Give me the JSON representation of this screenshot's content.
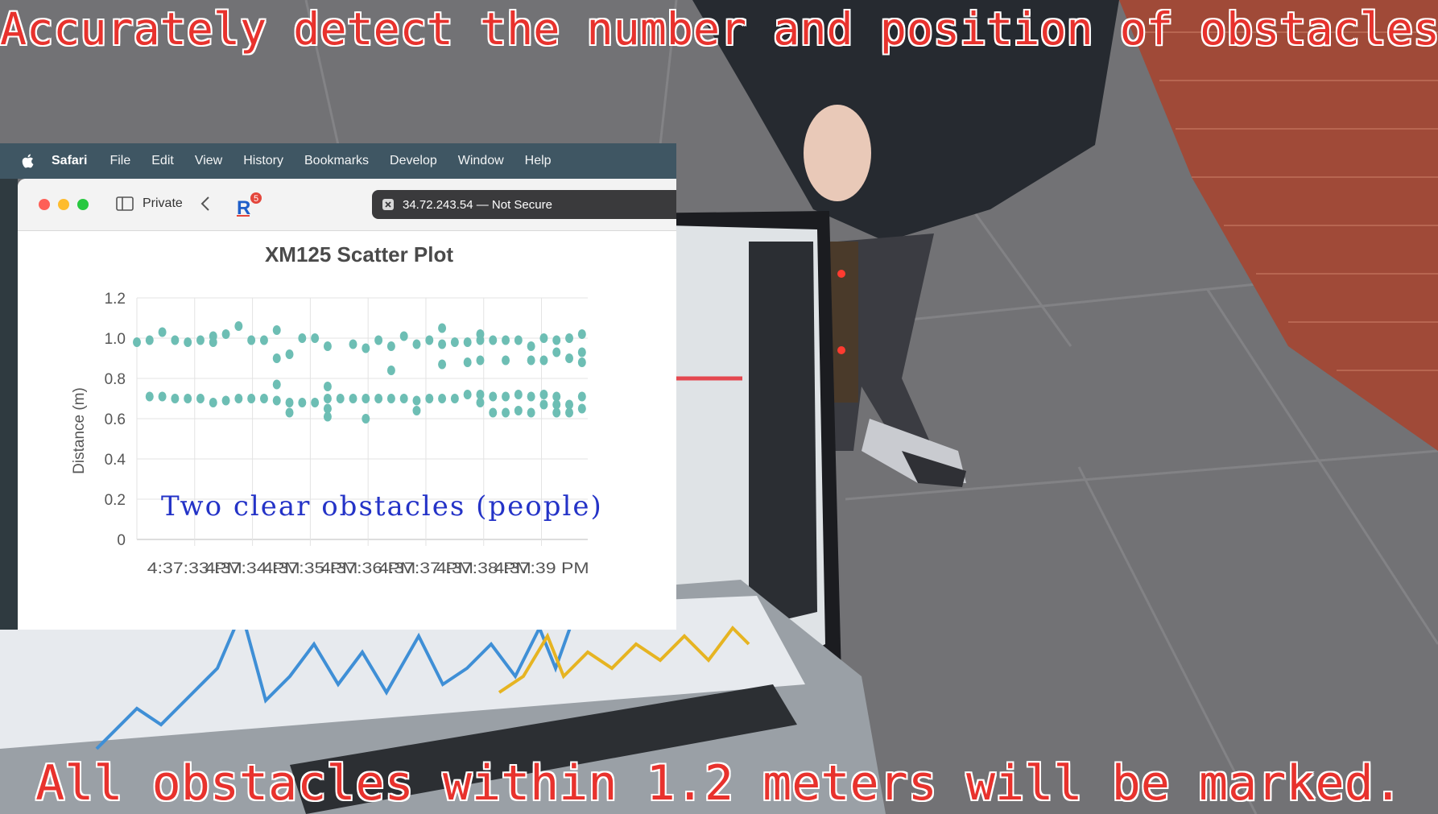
{
  "captions": {
    "top": "Accurately detect the number and position of obstacles.",
    "bottom": "All obstacles within 1.2 meters will be marked."
  },
  "menubar": {
    "app_name": "Safari",
    "items": [
      "File",
      "Edit",
      "View",
      "History",
      "Bookmarks",
      "Develop",
      "Window",
      "Help"
    ]
  },
  "browser": {
    "private_label": "Private",
    "extension_badge": "5",
    "url_text": "34.72.243.54 — Not Secure"
  },
  "colors": {
    "point": "#6dbeb4",
    "caption": "#e8322d",
    "annotation": "#2433c7"
  },
  "annotation": "Two clear obstacles (people)",
  "chart_data": {
    "type": "scatter",
    "title": "XM125 Scatter Plot",
    "xlabel": "",
    "ylabel": "Distance (m)",
    "ylim": [
      0,
      1.2
    ],
    "yticks": [
      "0",
      "0.2",
      "0.4",
      "0.6",
      "0.8",
      "1.0",
      "1.2"
    ],
    "xticks": [
      "4:37:33 PM",
      "4:37:34 PM",
      "4:37:35 PM",
      "4:37:36 PM",
      "4:37:37 PM",
      "4:37:38 PM",
      "4:37:39 PM"
    ],
    "x_range_seconds": [
      0,
      7.8
    ],
    "series": [
      {
        "points": [
          [
            0.0,
            0.98
          ],
          [
            0.22,
            0.99
          ],
          [
            0.44,
            1.03
          ],
          [
            0.66,
            0.99
          ],
          [
            0.88,
            0.98
          ],
          [
            1.1,
            0.99
          ],
          [
            1.32,
            0.98
          ],
          [
            1.32,
            1.01
          ],
          [
            1.54,
            1.02
          ],
          [
            1.76,
            1.06
          ],
          [
            1.98,
            0.99
          ],
          [
            2.2,
            0.99
          ],
          [
            2.42,
            1.04
          ],
          [
            2.42,
            0.9
          ],
          [
            2.64,
            0.92
          ],
          [
            2.86,
            1.0
          ],
          [
            3.08,
            1.0
          ],
          [
            3.3,
            0.96
          ],
          [
            3.74,
            0.97
          ],
          [
            3.96,
            0.95
          ],
          [
            4.18,
            0.99
          ],
          [
            4.4,
            0.96
          ],
          [
            4.4,
            0.84
          ],
          [
            4.62,
            1.01
          ],
          [
            4.84,
            0.97
          ],
          [
            5.06,
            0.99
          ],
          [
            5.28,
            1.05
          ],
          [
            5.28,
            0.97
          ],
          [
            5.28,
            0.87
          ],
          [
            5.5,
            0.98
          ],
          [
            5.72,
            0.98
          ],
          [
            5.72,
            0.88
          ],
          [
            5.94,
            1.02
          ],
          [
            5.94,
            0.99
          ],
          [
            5.94,
            0.89
          ],
          [
            6.16,
            0.99
          ],
          [
            6.38,
            0.99
          ],
          [
            6.38,
            0.89
          ],
          [
            6.6,
            0.99
          ],
          [
            6.82,
            0.96
          ],
          [
            6.82,
            0.89
          ],
          [
            7.04,
            1.0
          ],
          [
            7.04,
            0.89
          ],
          [
            7.26,
            0.99
          ],
          [
            7.26,
            0.93
          ],
          [
            7.48,
            1.0
          ],
          [
            7.48,
            0.9
          ],
          [
            7.7,
            1.02
          ],
          [
            7.7,
            0.93
          ],
          [
            7.7,
            0.88
          ],
          [
            0.22,
            0.71
          ],
          [
            0.44,
            0.71
          ],
          [
            0.66,
            0.7
          ],
          [
            0.88,
            0.7
          ],
          [
            1.1,
            0.7
          ],
          [
            1.32,
            0.68
          ],
          [
            1.54,
            0.69
          ],
          [
            1.76,
            0.7
          ],
          [
            1.98,
            0.7
          ],
          [
            2.2,
            0.7
          ],
          [
            2.42,
            0.77
          ],
          [
            2.42,
            0.69
          ],
          [
            2.64,
            0.68
          ],
          [
            2.64,
            0.63
          ],
          [
            2.86,
            0.68
          ],
          [
            3.08,
            0.68
          ],
          [
            3.3,
            0.76
          ],
          [
            3.3,
            0.7
          ],
          [
            3.3,
            0.65
          ],
          [
            3.3,
            0.61
          ],
          [
            3.52,
            0.7
          ],
          [
            3.74,
            0.7
          ],
          [
            3.96,
            0.7
          ],
          [
            3.96,
            0.6
          ],
          [
            4.18,
            0.7
          ],
          [
            4.4,
            0.7
          ],
          [
            4.62,
            0.7
          ],
          [
            4.84,
            0.69
          ],
          [
            4.84,
            0.64
          ],
          [
            5.06,
            0.7
          ],
          [
            5.28,
            0.7
          ],
          [
            5.5,
            0.7
          ],
          [
            5.72,
            0.72
          ],
          [
            5.94,
            0.72
          ],
          [
            5.94,
            0.68
          ],
          [
            6.16,
            0.71
          ],
          [
            6.16,
            0.63
          ],
          [
            6.38,
            0.71
          ],
          [
            6.38,
            0.63
          ],
          [
            6.6,
            0.72
          ],
          [
            6.6,
            0.64
          ],
          [
            6.82,
            0.71
          ],
          [
            6.82,
            0.63
          ],
          [
            7.04,
            0.72
          ],
          [
            7.04,
            0.67
          ],
          [
            7.26,
            0.71
          ],
          [
            7.26,
            0.67
          ],
          [
            7.26,
            0.63
          ],
          [
            7.48,
            0.67
          ],
          [
            7.48,
            0.63
          ],
          [
            7.7,
            0.71
          ],
          [
            7.7,
            0.65
          ]
        ]
      }
    ],
    "grid": true,
    "legend": "none"
  }
}
